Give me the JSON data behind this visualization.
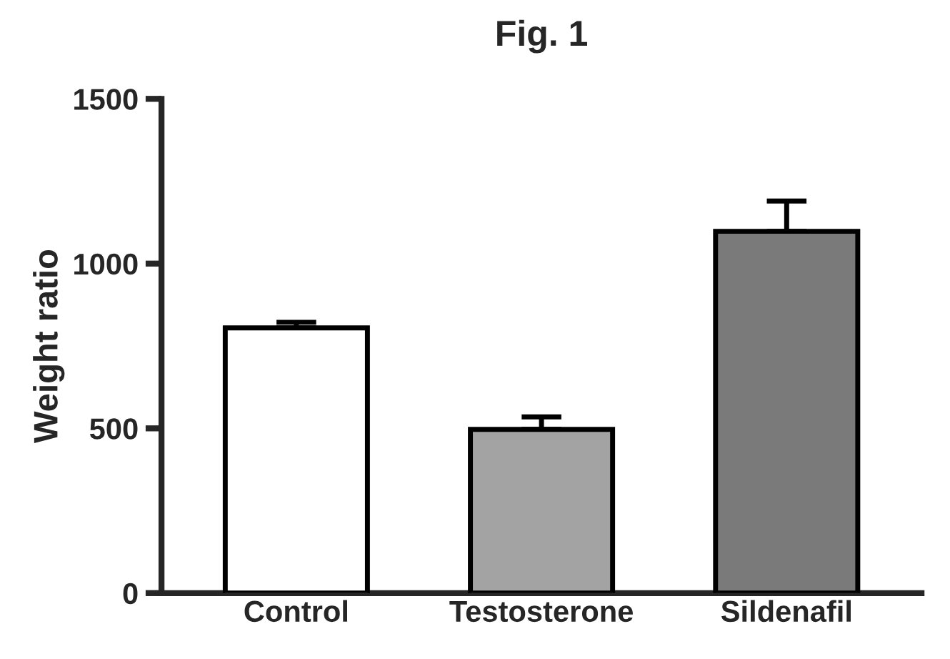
{
  "chart_data": {
    "type": "bar",
    "title": "Fig. 1",
    "ylabel": "Weight ratio",
    "categories": [
      "Control",
      "Testosterone",
      "Sildenafil"
    ],
    "values": [
      805,
      497,
      1098
    ],
    "colors": [
      "#ffffff",
      "#a3a3a3",
      "#7a7a7a"
    ],
    "errors": [
      [
        805,
        822
      ],
      [
        497,
        535
      ],
      [
        1098,
        1190
      ]
    ],
    "ylim": [
      0,
      1500
    ],
    "yticks": [
      0,
      500,
      1000,
      1500
    ],
    "grid": false,
    "legend": false
  }
}
